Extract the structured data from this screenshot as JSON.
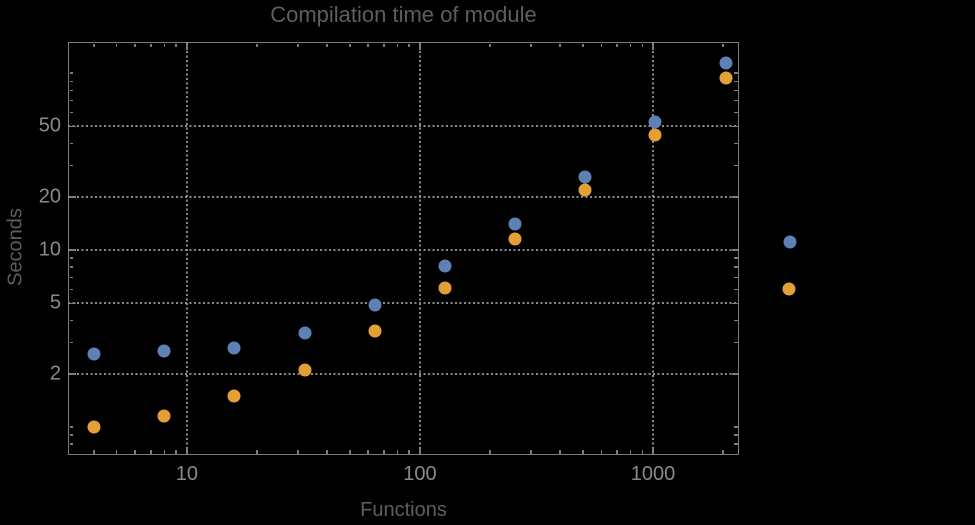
{
  "title": "Compilation time of module",
  "colors": {
    "background": "#000000",
    "frame": "#7d7d7d",
    "grid": "#8a8a8a",
    "tick_label": "#8a8a8a",
    "title": "#5e5e5e",
    "axis_label": "#5e5e5e",
    "series_blue": "#5e81b5",
    "series_orange": "#e5a035"
  },
  "chart_data": {
    "type": "scatter",
    "title": "Compilation time of module",
    "xlabel": "Functions",
    "ylabel": "Seconds",
    "xscale": "log",
    "yscale": "log",
    "xlim": [
      3.09,
      2340
    ],
    "ylim": [
      0.695,
      150
    ],
    "grid": "dotted gridlines at major ticks only",
    "legend_position": "outside right of frame, two unlabeled point markers",
    "x": [
      4,
      8,
      16,
      32,
      64,
      128,
      256,
      512,
      1024,
      2048
    ],
    "series": [
      {
        "name": "series-1-blue",
        "color": "#5e81b5",
        "values": [
          2.6,
          2.7,
          2.8,
          3.4,
          4.9,
          8.1,
          14,
          26,
          53,
          114
        ]
      },
      {
        "name": "series-2-orange",
        "color": "#e5a035",
        "values": [
          1.0,
          1.15,
          1.5,
          2.1,
          3.5,
          6.1,
          11.5,
          22,
          45,
          94
        ]
      }
    ],
    "x_major_ticks": [
      {
        "value": 10,
        "label": "10"
      },
      {
        "value": 100,
        "label": "100"
      },
      {
        "value": 1000,
        "label": "1000"
      }
    ],
    "x_minor_ticks": [
      4,
      5,
      6,
      7,
      8,
      9,
      20,
      30,
      40,
      50,
      60,
      70,
      80,
      90,
      200,
      300,
      400,
      500,
      600,
      700,
      800,
      900,
      2000
    ],
    "y_major_ticks": [
      {
        "value": 2,
        "label": "2"
      },
      {
        "value": 5,
        "label": "5"
      },
      {
        "value": 10,
        "label": "10"
      },
      {
        "value": 20,
        "label": "20"
      },
      {
        "value": 50,
        "label": "50"
      }
    ],
    "y_minor_ticks": [
      0.7,
      0.8,
      0.9,
      1,
      3,
      4,
      6,
      7,
      8,
      9,
      30,
      40,
      60,
      70,
      80,
      90,
      100
    ],
    "x_gridlines": [
      10,
      100,
      1000
    ],
    "y_gridlines": [
      2,
      5,
      10,
      20,
      50
    ]
  },
  "legend": {
    "markers": [
      {
        "name": "series-1-marker",
        "color": "#5e81b5"
      },
      {
        "name": "series-2-marker",
        "color": "#e5a035"
      }
    ]
  }
}
